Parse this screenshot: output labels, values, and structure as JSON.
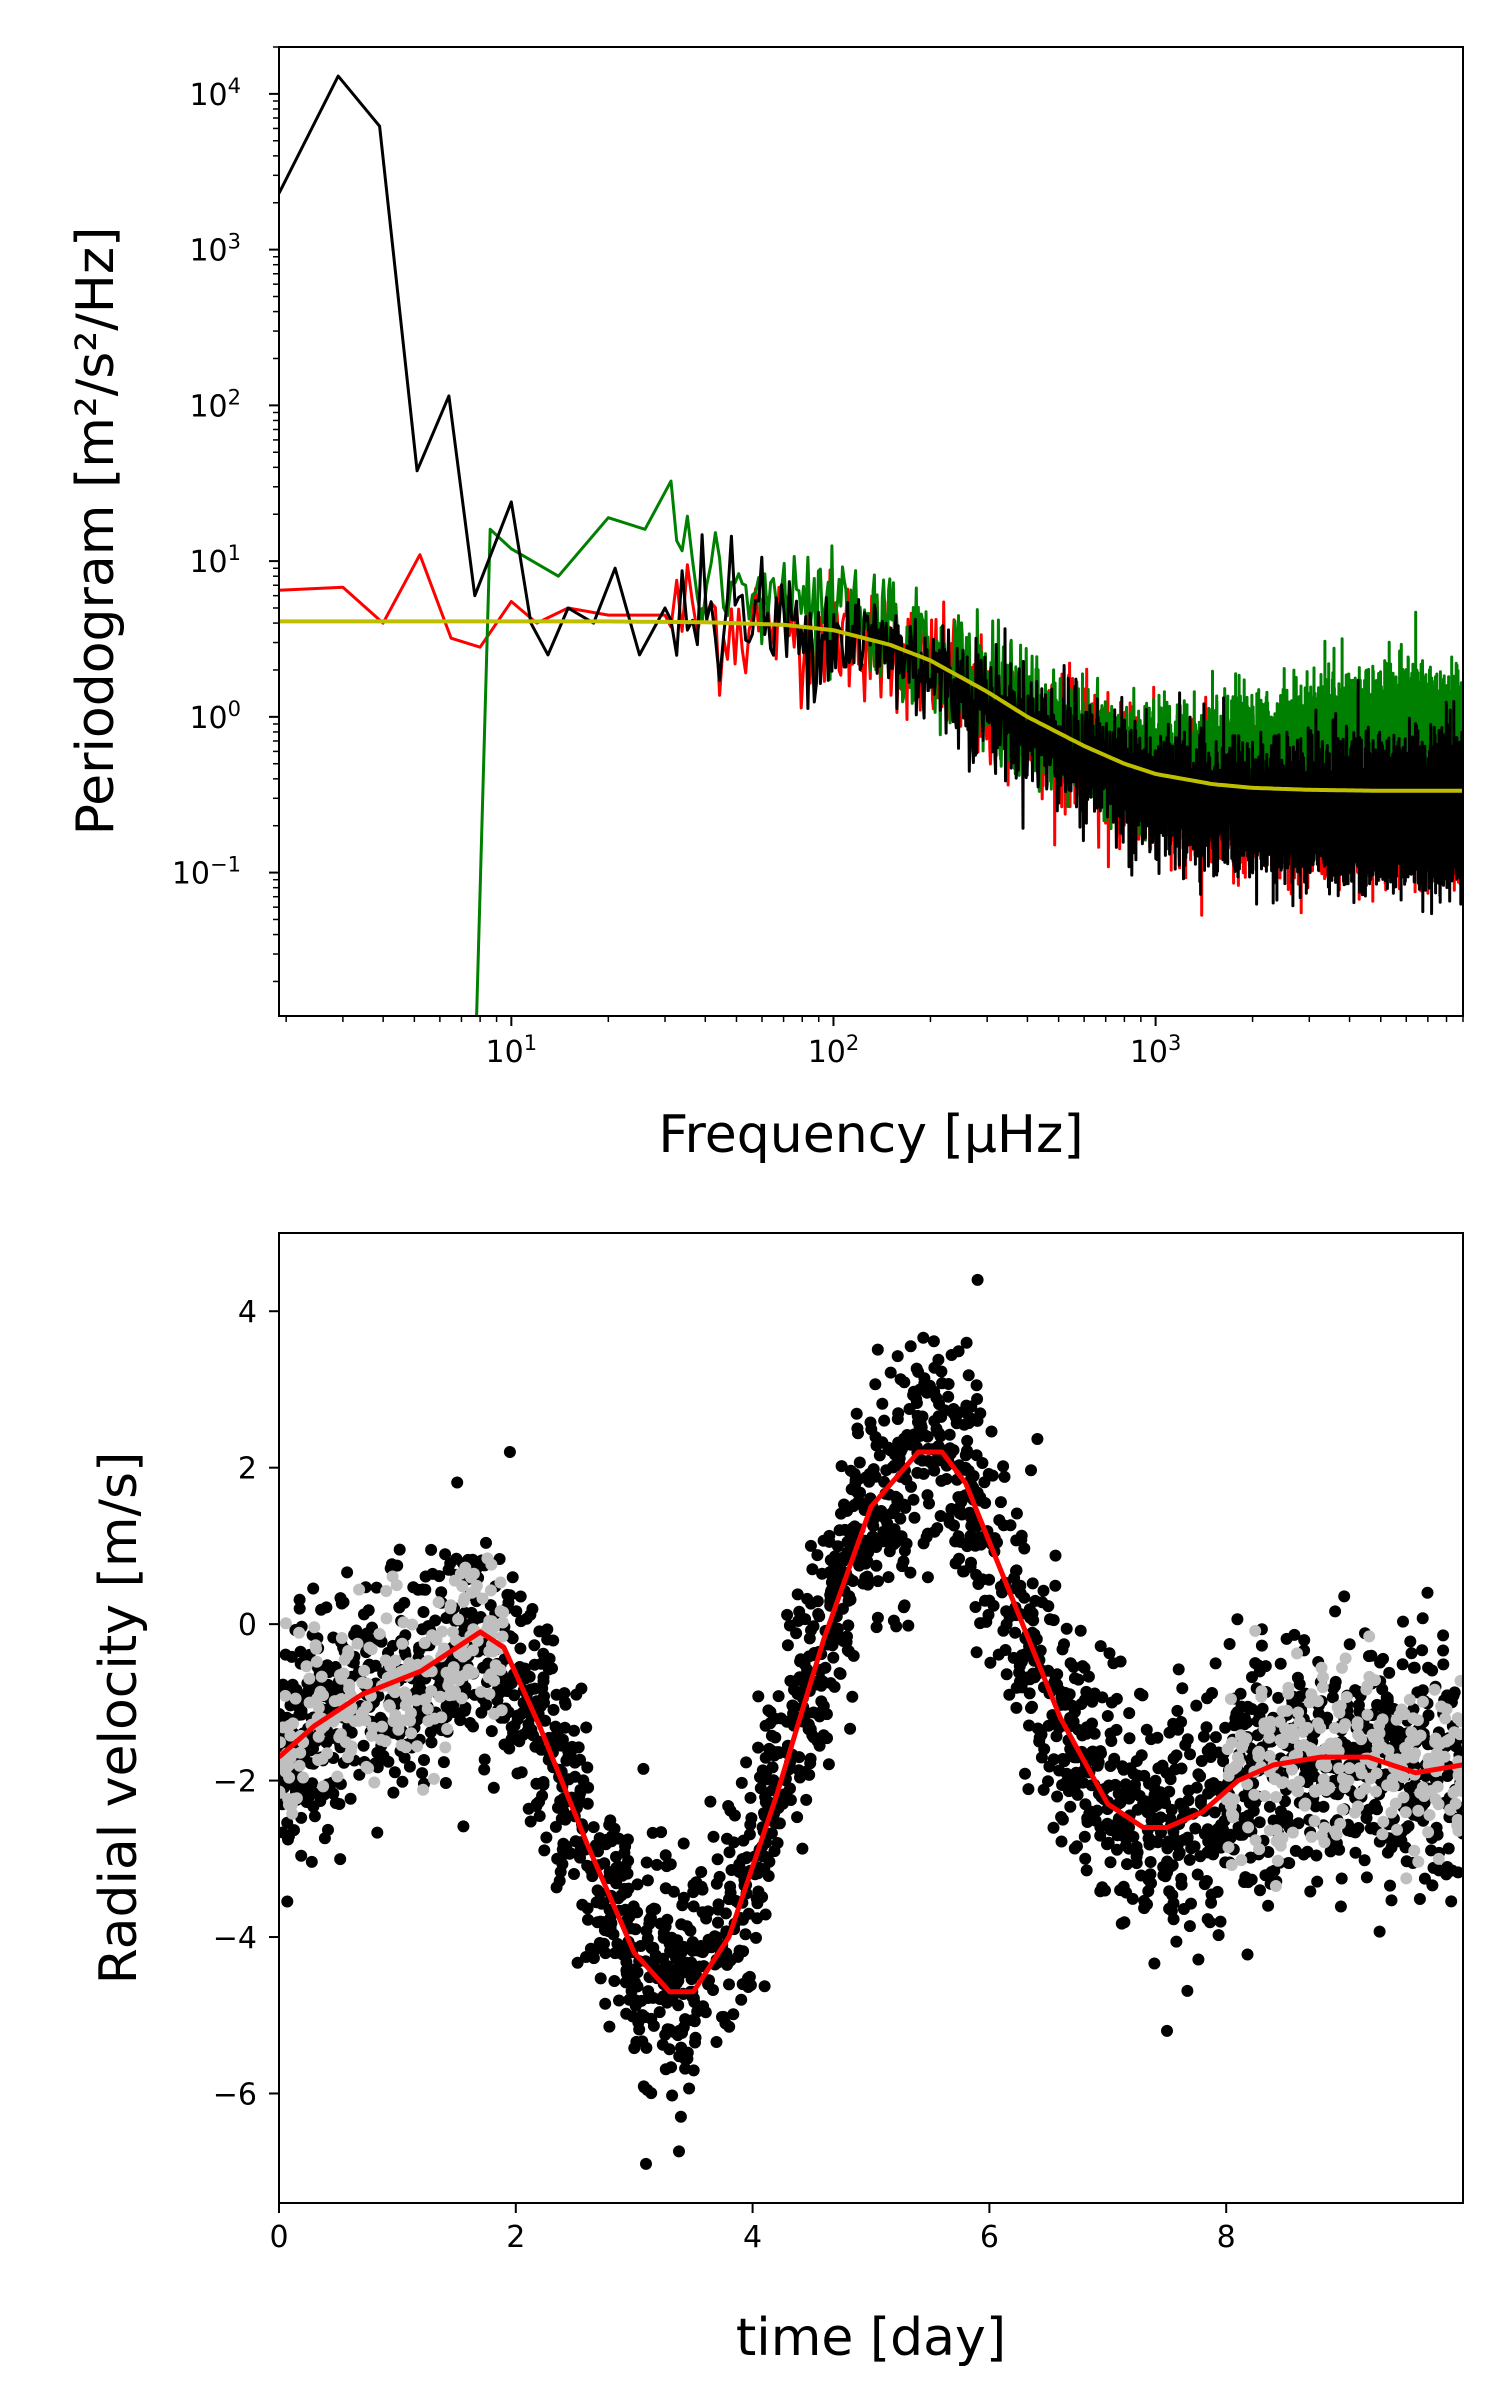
{
  "colors": {
    "black": "#000000",
    "red": "#ff0000",
    "green": "#008000",
    "yellow": "#bfbf00",
    "gray": "#bfbfbf"
  },
  "chart_data": [
    {
      "id": "periodogram",
      "type": "line",
      "xscale": "log",
      "yscale": "log",
      "xlim": [
        1.9,
        9000
      ],
      "ylim": [
        0.012,
        20000
      ],
      "xlabel": "Frequency [μHz]",
      "ylabel": "Periodogram [m²/s²/Hz]",
      "xticks": [
        {
          "value": 10,
          "base": "10",
          "exp": "1"
        },
        {
          "value": 100,
          "base": "10",
          "exp": "2"
        },
        {
          "value": 1000,
          "base": "10",
          "exp": "3"
        }
      ],
      "yticks": [
        {
          "value": 10000,
          "base": "10",
          "exp": "4"
        },
        {
          "value": 1000,
          "base": "10",
          "exp": "3"
        },
        {
          "value": 100,
          "base": "10",
          "exp": "2"
        },
        {
          "value": 10,
          "base": "10",
          "exp": "1"
        },
        {
          "value": 1,
          "base": "10",
          "exp": "0"
        },
        {
          "value": 0.1,
          "base": "10",
          "exp": "−1"
        }
      ],
      "series": [
        {
          "name": "residual periodogram (red)",
          "color": "#ff0000",
          "noisy": true,
          "x": [
            1.9,
            3,
            4,
            5.2,
            6.5,
            8,
            10,
            12,
            15,
            20,
            30,
            50,
            100,
            150,
            200,
            300,
            500,
            800,
            1000,
            2000,
            5000,
            9000
          ],
          "y": [
            6.5,
            6.8,
            4,
            11,
            3.2,
            2.8,
            5.5,
            4,
            5,
            4.5,
            4.5,
            4.2,
            3.5,
            2.8,
            2.0,
            1.2,
            0.7,
            0.45,
            0.35,
            0.3,
            0.3,
            0.3
          ]
        },
        {
          "name": "filtered periodogram (green)",
          "color": "#008000",
          "noisy": true,
          "x": [
            7.8,
            8.6,
            10,
            14,
            20,
            26,
            32,
            40,
            55,
            80,
            120,
            200,
            400,
            800,
            1500,
            3000,
            6000,
            9000
          ],
          "y": [
            0.012,
            16,
            12,
            8,
            19,
            16,
            18,
            8,
            6,
            5,
            4,
            2.5,
            1,
            0.5,
            0.5,
            0.6,
            0.7,
            0.6
          ]
        },
        {
          "name": "raw periodogram (black)",
          "color": "#000000",
          "noisy": true,
          "x": [
            1.9,
            2.9,
            3.9,
            5.1,
            6.4,
            7.7,
            10,
            11.5,
            13,
            15,
            18,
            21,
            25,
            30,
            40,
            60,
            100,
            150,
            200,
            300,
            500,
            800,
            1000,
            2000,
            5000,
            9000
          ],
          "y": [
            2300,
            13000,
            6200,
            38,
            115,
            6,
            24,
            4,
            2.5,
            5,
            4,
            9,
            2.5,
            5,
            5,
            4,
            3.5,
            2.8,
            2.0,
            1.2,
            0.65,
            0.4,
            0.3,
            0.25,
            0.25,
            0.25
          ]
        },
        {
          "name": "model fit (yellow)",
          "color": "#bfbf00",
          "noisy": false,
          "x": [
            1.9,
            5,
            10,
            20,
            40,
            70,
            100,
            150,
            200,
            300,
            400,
            600,
            800,
            1000,
            1500,
            2000,
            3000,
            5000,
            9000
          ],
          "y": [
            4.1,
            4.1,
            4.1,
            4.1,
            4.05,
            3.9,
            3.6,
            2.9,
            2.3,
            1.45,
            1.0,
            0.65,
            0.5,
            0.43,
            0.37,
            0.35,
            0.34,
            0.335,
            0.335
          ]
        }
      ]
    },
    {
      "id": "radial-velocity",
      "type": "scatter",
      "xlim": [
        0,
        10
      ],
      "ylim": [
        -7.4,
        5
      ],
      "xlabel": "time [day]",
      "ylabel": "Radial velocity [m/s]",
      "xticks": [
        0,
        2,
        4,
        6,
        8
      ],
      "ytick_values": [
        4,
        2,
        0,
        -2,
        -4,
        -6
      ],
      "ytick_labels": [
        "4",
        "2",
        "0",
        "−2",
        "−4",
        "−6"
      ],
      "scatter_spread_ms": 0.75,
      "gray_points_intervals_days": [
        [
          0,
          1.9
        ],
        [
          8,
          10
        ]
      ],
      "series": [
        {
          "name": "mean trend (red line)",
          "color": "#ff0000",
          "x": [
            0,
            0.3,
            0.7,
            1.2,
            1.7,
            1.9,
            2.2,
            2.6,
            3.0,
            3.3,
            3.5,
            3.8,
            4.2,
            4.6,
            5.0,
            5.4,
            5.6,
            5.8,
            6.2,
            6.6,
            7.0,
            7.3,
            7.5,
            7.8,
            8.1,
            8.4,
            8.8,
            9.2,
            9.6,
            10
          ],
          "y": [
            -1.7,
            -1.3,
            -0.9,
            -0.6,
            -0.1,
            -0.3,
            -1.3,
            -2.8,
            -4.2,
            -4.7,
            -4.7,
            -4.0,
            -2.2,
            -0.2,
            1.5,
            2.2,
            2.2,
            1.8,
            0.3,
            -1.2,
            -2.3,
            -2.6,
            -2.6,
            -2.4,
            -2.0,
            -1.8,
            -1.7,
            -1.7,
            -1.9,
            -1.8
          ]
        }
      ]
    }
  ]
}
